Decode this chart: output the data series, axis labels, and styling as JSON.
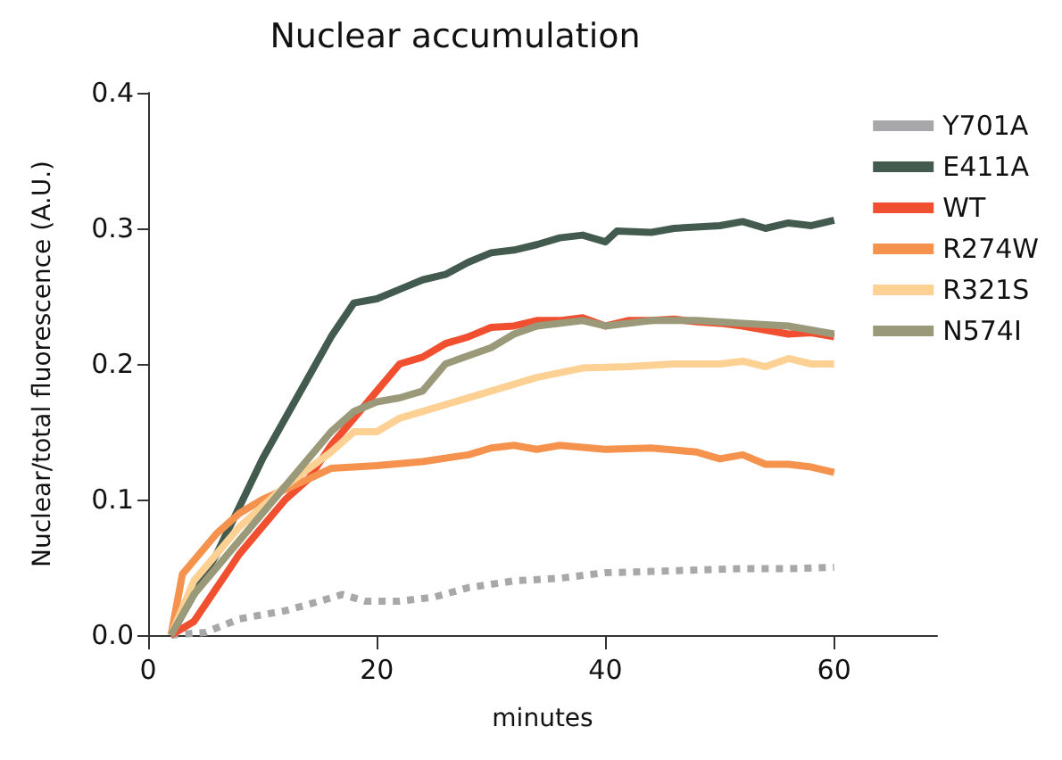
{
  "chart_data": {
    "type": "line",
    "title": "Nuclear accumulation",
    "xlabel": "minutes",
    "ylabel": "Nuclear/total fluorescence (A.U.)",
    "xlim": [
      0,
      69
    ],
    "xticks": [
      0,
      20,
      40,
      60
    ],
    "ylim": [
      0,
      0.4
    ],
    "yticks": [
      {
        "value": 0,
        "label": "0.0"
      },
      {
        "value": 0.1,
        "label": "0.1"
      },
      {
        "value": 0.2,
        "label": "0.2"
      },
      {
        "value": 0.3,
        "label": "0.3"
      },
      {
        "value": 0.4,
        "label": "0.4"
      }
    ],
    "grid": false,
    "legend": "right",
    "marker": "none",
    "line_style": "solid",
    "series": [
      {
        "name": "Y701A",
        "color": "#a8a8ab",
        "line_style": "dashed",
        "x": [
          2,
          5,
          8,
          12,
          15,
          17,
          19,
          22,
          25,
          28,
          32,
          36,
          40,
          44,
          48,
          52,
          56,
          60
        ],
        "values": [
          0,
          0.002,
          0.012,
          0.018,
          0.025,
          0.03,
          0.025,
          0.025,
          0.028,
          0.035,
          0.04,
          0.042,
          0.046,
          0.047,
          0.048,
          0.049,
          0.049,
          0.05
        ]
      },
      {
        "name": "E411A",
        "color": "#435a4f",
        "x": [
          2,
          6,
          10,
          14,
          16,
          18,
          20,
          22,
          24,
          26,
          28,
          30,
          32,
          34,
          36,
          38,
          40,
          41,
          44,
          46,
          50,
          52,
          54,
          56,
          58,
          60
        ],
        "values": [
          0,
          0.06,
          0.13,
          0.19,
          0.22,
          0.245,
          0.248,
          0.255,
          0.262,
          0.266,
          0.275,
          0.282,
          0.284,
          0.288,
          0.293,
          0.295,
          0.29,
          0.298,
          0.297,
          0.3,
          0.302,
          0.305,
          0.3,
          0.304,
          0.302,
          0.306
        ]
      },
      {
        "name": "WT",
        "color": "#f05030",
        "x": [
          2,
          4,
          6,
          8,
          10,
          12,
          14,
          16,
          18,
          20,
          22,
          24,
          26,
          28,
          30,
          32,
          34,
          36,
          38,
          40,
          42,
          44,
          46,
          48,
          50,
          52,
          54,
          56,
          58,
          60
        ],
        "values": [
          0,
          0.01,
          0.035,
          0.06,
          0.08,
          0.1,
          0.115,
          0.14,
          0.16,
          0.18,
          0.2,
          0.205,
          0.215,
          0.22,
          0.227,
          0.228,
          0.232,
          0.232,
          0.234,
          0.228,
          0.232,
          0.232,
          0.233,
          0.231,
          0.23,
          0.228,
          0.225,
          0.222,
          0.223,
          0.22
        ]
      },
      {
        "name": "R274W",
        "color": "#f5924e",
        "x": [
          2,
          3,
          6,
          8,
          10,
          14,
          16,
          20,
          24,
          28,
          30,
          32,
          34,
          36,
          40,
          44,
          48,
          50,
          52,
          54,
          56,
          58,
          60
        ],
        "values": [
          0,
          0.045,
          0.075,
          0.09,
          0.1,
          0.115,
          0.123,
          0.125,
          0.128,
          0.133,
          0.138,
          0.14,
          0.137,
          0.14,
          0.137,
          0.138,
          0.135,
          0.13,
          0.133,
          0.126,
          0.126,
          0.124,
          0.12
        ]
      },
      {
        "name": "R321S",
        "color": "#fdd193",
        "x": [
          2,
          4,
          8,
          12,
          16,
          18,
          20,
          22,
          26,
          30,
          34,
          38,
          42,
          46,
          50,
          52,
          54,
          56,
          58,
          60
        ],
        "values": [
          0,
          0.04,
          0.08,
          0.11,
          0.135,
          0.15,
          0.15,
          0.16,
          0.17,
          0.18,
          0.19,
          0.197,
          0.198,
          0.2,
          0.2,
          0.202,
          0.198,
          0.204,
          0.2,
          0.2
        ]
      },
      {
        "name": "N574I",
        "color": "#9a9a7a",
        "x": [
          2,
          4,
          8,
          12,
          14,
          16,
          18,
          20,
          22,
          24,
          26,
          30,
          32,
          34,
          38,
          40,
          44,
          48,
          52,
          56,
          58,
          60
        ],
        "values": [
          0,
          0.03,
          0.07,
          0.11,
          0.13,
          0.15,
          0.165,
          0.172,
          0.175,
          0.18,
          0.2,
          0.212,
          0.222,
          0.228,
          0.232,
          0.228,
          0.232,
          0.232,
          0.23,
          0.228,
          0.225,
          0.222
        ]
      }
    ]
  }
}
